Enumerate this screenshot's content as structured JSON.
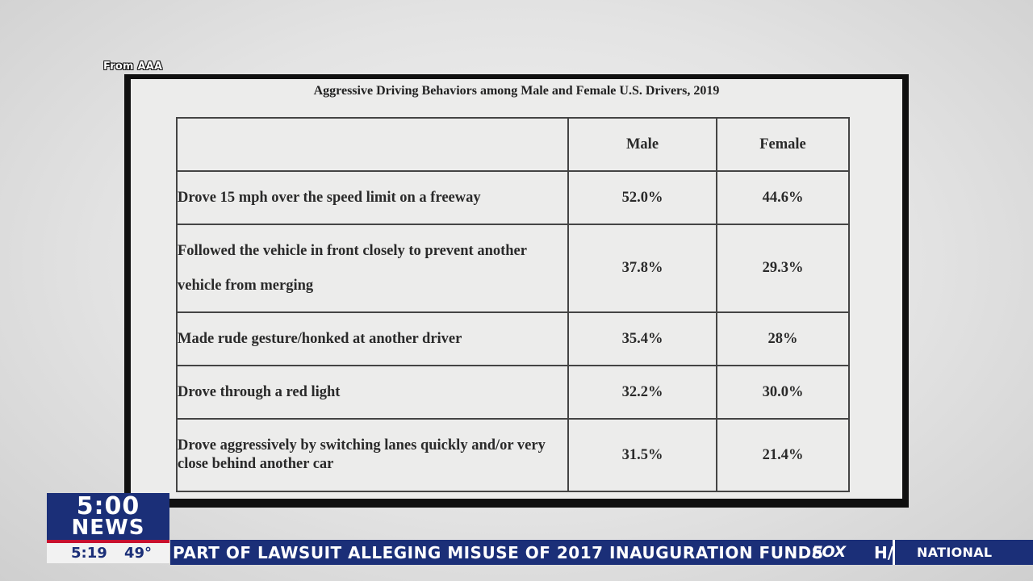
{
  "source": "From AAA",
  "document": {
    "title": "Aggressive Driving Behaviors among Male and Female U.S. Drivers, 2019",
    "columns": [
      "",
      "Male",
      "Female"
    ],
    "rows": [
      {
        "behavior": "Drove 15 mph over the speed limit on a freeway",
        "male": "52.0%",
        "female": "44.6%"
      },
      {
        "behavior": "Followed the vehicle in front closely to prevent another vehicle from merging",
        "male": "37.8%",
        "female": "29.3%"
      },
      {
        "behavior": "Made rude gesture/honked at another driver",
        "male": "35.4%",
        "female": "28%"
      },
      {
        "behavior": "Drove through a red light",
        "male": "32.2%",
        "female": "30.0%"
      },
      {
        "behavior": "Drove aggressively by switching lanes quickly and/or very close behind another car",
        "male": "31.5%",
        "female": "21.4%"
      }
    ]
  },
  "broadcast": {
    "logo_time": "5:00",
    "logo_word": "NEWS",
    "clock": "5:19",
    "temperature": "49°",
    "ticker": "PART OF LAWSUIT ALLEGING MISUSE OF 2017 INAUGURATION FUNDS",
    "network": "FOX",
    "ticker_next": "H/",
    "section": "NATIONAL",
    "colors": {
      "primary": "#1b2f78",
      "accent": "#c8102e"
    }
  }
}
